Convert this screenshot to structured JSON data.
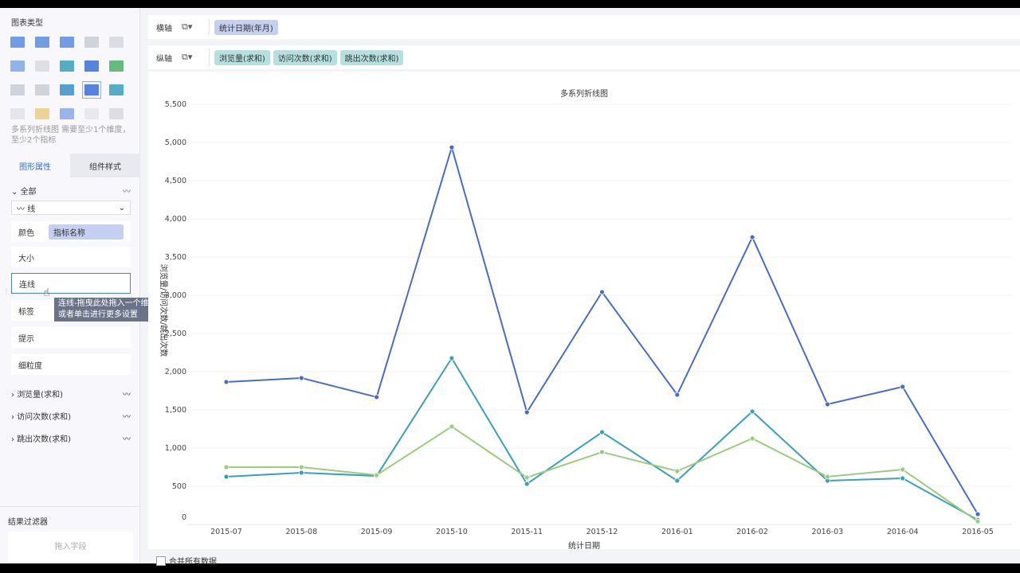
{
  "sidebar": {
    "section_title": "图表类型",
    "chart_types": [
      {
        "name": "table-icon",
        "color": "#5b8de0"
      },
      {
        "name": "crosstab-icon",
        "color": "#5b8de0"
      },
      {
        "name": "detail-table-icon",
        "color": "#5b8de0"
      },
      {
        "name": "kpi-number-icon",
        "color": "#c8ccd6"
      },
      {
        "name": "kpi-card-icon",
        "color": "#d6d8de"
      },
      {
        "name": "filter-table-icon",
        "color": "#7fa6e6"
      },
      {
        "name": "map-icon",
        "color": "#d8dae0"
      },
      {
        "name": "bar-combo-icon",
        "color": "#3aa0b8"
      },
      {
        "name": "column-icon",
        "color": "#3a6fd8"
      },
      {
        "name": "grouped-column-icon",
        "color": "#4caf6a"
      },
      {
        "name": "stacked-bar-icon",
        "color": "#c8ccd6"
      },
      {
        "name": "scatter-small-icon",
        "color": "#c8ccd6"
      },
      {
        "name": "line-icon",
        "color": "#3a8fc8"
      },
      {
        "name": "multi-line-icon",
        "color": "#3a6fd8"
      },
      {
        "name": "radar-icon",
        "color": "#3aa0b8"
      },
      {
        "name": "area-icon",
        "color": "#d0d4dc"
      },
      {
        "name": "combo-icon",
        "color": "#e0b030"
      },
      {
        "name": "scatter-icon",
        "color": "#3a6fd8"
      },
      {
        "name": "bubble-icon",
        "color": "#d8dae0"
      },
      {
        "name": "pie-icon",
        "color": "#c0c4cc"
      }
    ],
    "hint": "多系列折线图 需要至少1个维度，至少2个指标",
    "tabs": [
      "图形属性",
      "组件样式"
    ],
    "all_label": "全部",
    "mark_type": "线",
    "color_label": "颜色",
    "color_pill": "指标名称",
    "size_label": "大小",
    "line_label": "连线",
    "label_label": "标签",
    "tooltip_label": "提示",
    "granularity_label": "细粒度",
    "series": [
      "浏览量(求和)",
      "访问次数(求和)",
      "跳出次数(求和)"
    ],
    "tooltip_text": "连线-拖曳此处拖入一个维度或一个指标，或者单击进行更多设置",
    "filter_title": "结果过滤器",
    "filter_drop": "拖入字段"
  },
  "toolbar": {
    "x_label": "横轴",
    "x_pill": "统计日期(年月)",
    "y_label": "纵轴",
    "y_pills": [
      "浏览量(求和)",
      "访问次数(求和)",
      "跳出次数(求和)"
    ]
  },
  "footer": {
    "checkbox_label": "合并所有数据"
  },
  "chart_data": {
    "type": "line",
    "title": "多系列折线图",
    "xlabel": "统计日期",
    "ylabel": "浏览量/访问次数/跳出次数",
    "ylim": [
      0,
      5500
    ],
    "yticks": [
      0,
      500,
      1000,
      1500,
      2000,
      2500,
      3000,
      3500,
      4000,
      4500,
      5000,
      5500
    ],
    "ytick_labels": [
      "0",
      "500",
      "1,000",
      "1,500",
      "2,000",
      "2,500",
      "3,000",
      "3,500",
      "4,000",
      "4,500",
      "5,000",
      "5,500"
    ],
    "categories": [
      "2015-07",
      "2015-08",
      "2015-09",
      "2015-10",
      "2015-11",
      "2015-12",
      "2016-01",
      "2016-02",
      "2016-03",
      "2016-04",
      "2016-05"
    ],
    "grid": true,
    "series": [
      {
        "name": "浏览量(求和)",
        "color": "#4a6cc8",
        "values": [
          1865,
          1917,
          1667,
          4935,
          1469,
          3042,
          1698,
          3760,
          1573,
          1802,
          135
        ]
      },
      {
        "name": "访问次数(求和)",
        "color": "#3aa0b4",
        "values": [
          625,
          677,
          635,
          2177,
          531,
          1208,
          573,
          1479,
          573,
          604,
          60
        ]
      },
      {
        "name": "跳出次数(求和)",
        "color": "#9ccb80",
        "values": [
          750,
          750,
          646,
          1281,
          615,
          948,
          698,
          1125,
          625,
          719,
          40
        ]
      }
    ]
  }
}
